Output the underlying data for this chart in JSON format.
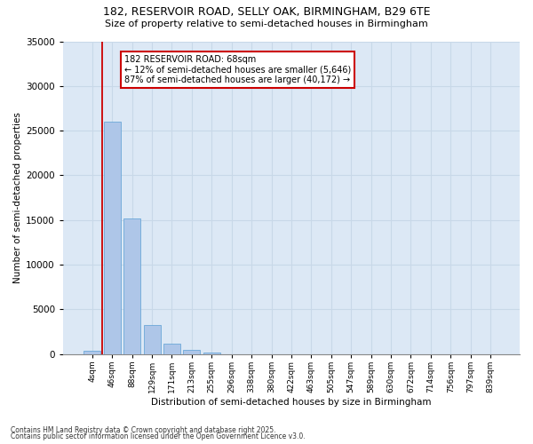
{
  "title1": "182, RESERVOIR ROAD, SELLY OAK, BIRMINGHAM, B29 6TE",
  "title2": "Size of property relative to semi-detached houses in Birmingham",
  "xlabel": "Distribution of semi-detached houses by size in Birmingham",
  "ylabel": "Number of semi-detached properties",
  "property_label": "182 RESERVOIR ROAD: 68sqm",
  "pct_smaller": 12,
  "pct_larger": 87,
  "n_smaller": 5646,
  "n_larger": 40172,
  "bin_labels": [
    "4sqm",
    "46sqm",
    "88sqm",
    "129sqm",
    "171sqm",
    "213sqm",
    "255sqm",
    "296sqm",
    "338sqm",
    "380sqm",
    "422sqm",
    "463sqm",
    "505sqm",
    "547sqm",
    "589sqm",
    "630sqm",
    "672sqm",
    "714sqm",
    "756sqm",
    "797sqm",
    "839sqm"
  ],
  "bar_values": [
    350,
    26000,
    15200,
    3200,
    1200,
    450,
    150,
    0,
    0,
    0,
    0,
    0,
    0,
    0,
    0,
    0,
    0,
    0,
    0,
    0,
    0
  ],
  "bar_color": "#aec6e8",
  "bar_edge_color": "#5a9fd4",
  "vline_color": "#cc0000",
  "vline_x": 0.5,
  "ylim": [
    0,
    35000
  ],
  "yticks": [
    0,
    5000,
    10000,
    15000,
    20000,
    25000,
    30000,
    35000
  ],
  "grid_color": "#c8d8e8",
  "background_color": "#dce8f5",
  "footer1": "Contains HM Land Registry data © Crown copyright and database right 2025.",
  "footer2": "Contains public sector information licensed under the Open Government Licence v3.0."
}
